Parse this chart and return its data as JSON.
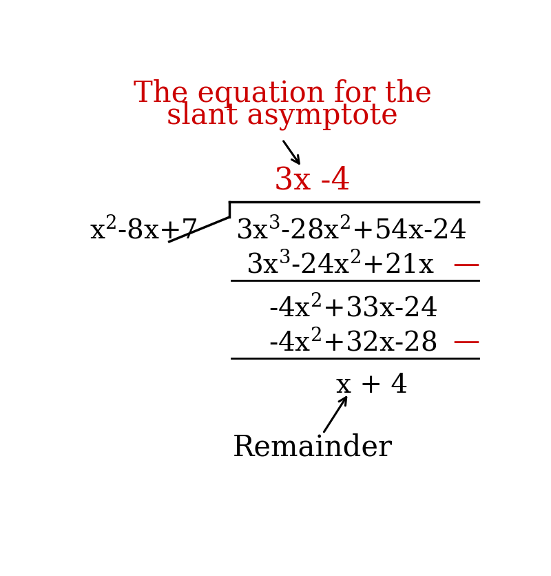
{
  "title_line1": "The equation for the",
  "title_line2": "slant asymptote",
  "title_color": "#cc0000",
  "title_fontsize": 30,
  "quotient": "3x -4",
  "quotient_color": "#cc0000",
  "quotient_fontsize": 32,
  "body_fontsize": 28,
  "body_color": "#000000",
  "red_dash_color": "#cc0000",
  "bg_color": "#ffffff",
  "fig_width": 8.0,
  "fig_height": 8.37
}
